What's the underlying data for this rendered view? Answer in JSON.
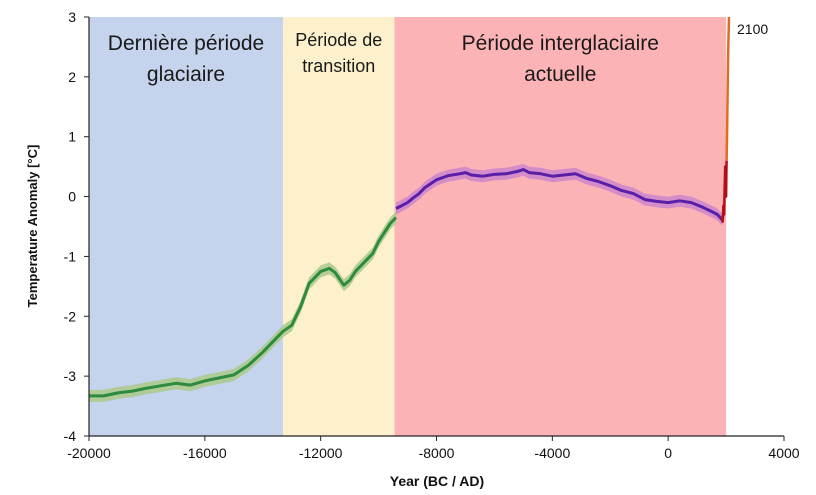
{
  "chart_data": {
    "type": "line",
    "title": "",
    "xlabel": "Year (BC / AD)",
    "ylabel": "Temperature Anomaly [°C]",
    "xlim": [
      -20000,
      4000
    ],
    "ylim": [
      -4,
      3
    ],
    "x_ticks": [
      -20000,
      -16000,
      -12000,
      -8000,
      -4000,
      0,
      4000
    ],
    "x_tick_labels": [
      "-20000",
      "-16000",
      "-12000",
      "-8000",
      "-4000",
      "0",
      "4000"
    ],
    "y_ticks": [
      3,
      2,
      1,
      0,
      -1,
      -2,
      -3,
      -4
    ],
    "y_tick_labels": [
      "3",
      "2",
      "1",
      "0",
      "-1",
      "-2",
      "-3",
      "-4"
    ],
    "grid": false,
    "periods": [
      {
        "label_lines": [
          "Dernière période",
          "glaciaire"
        ],
        "x_start": -20000,
        "x_end": -13300,
        "color": "#c5d3ec"
      },
      {
        "label_lines": [
          "Période de",
          "transition"
        ],
        "x_start": -13300,
        "x_end": -9450,
        "color": "#fdf0cc"
      },
      {
        "label_lines": [
          "Période interglaciaire",
          "actuelle"
        ],
        "x_start": -9450,
        "x_end": 2000,
        "color": "#fcb3b6"
      }
    ],
    "annotation": "2100",
    "uncertainty_halfwidth": 0.1,
    "series": [
      {
        "color": "#2d8a3e",
        "band_color": "#a9c98a",
        "x": [
          -20000,
          -19500,
          -19000,
          -18500,
          -18000,
          -17500,
          -17000,
          -16500,
          -16000,
          -15500,
          -15000,
          -14500,
          -14000,
          -13600,
          -13300,
          -13000,
          -12700,
          -12400,
          -12000,
          -11700,
          -11500,
          -11200,
          -11000,
          -10800,
          -10500,
          -10200,
          -10000,
          -9800,
          -9600,
          -9400
        ],
        "y": [
          -3.33,
          -3.33,
          -3.28,
          -3.25,
          -3.2,
          -3.16,
          -3.12,
          -3.15,
          -3.08,
          -3.03,
          -2.98,
          -2.82,
          -2.6,
          -2.4,
          -2.25,
          -2.15,
          -1.85,
          -1.45,
          -1.25,
          -1.2,
          -1.27,
          -1.48,
          -1.4,
          -1.25,
          -1.1,
          -0.95,
          -0.75,
          -0.6,
          -0.45,
          -0.35
        ]
      },
      {
        "color": "#5a1fa8",
        "band_color": "#cc86cc",
        "x": [
          -9400,
          -9200,
          -9000,
          -8800,
          -8600,
          -8400,
          -8000,
          -7600,
          -7200,
          -7000,
          -6800,
          -6400,
          -6000,
          -5600,
          -5200,
          -5000,
          -4800,
          -4400,
          -4000,
          -3600,
          -3200,
          -2800,
          -2400,
          -2000,
          -1600,
          -1200,
          -800,
          -400,
          0,
          400,
          800,
          1200,
          1500,
          1700,
          1850,
          1900
        ],
        "y": [
          -0.2,
          -0.15,
          -0.1,
          -0.02,
          0.05,
          0.15,
          0.28,
          0.35,
          0.38,
          0.4,
          0.36,
          0.34,
          0.37,
          0.38,
          0.42,
          0.45,
          0.4,
          0.38,
          0.34,
          0.36,
          0.38,
          0.3,
          0.25,
          0.18,
          0.1,
          0.05,
          -0.05,
          -0.08,
          -0.1,
          -0.07,
          -0.1,
          -0.18,
          -0.25,
          -0.3,
          -0.38,
          -0.33
        ]
      },
      {
        "color": "#b30d17",
        "x": [
          1850,
          1880,
          1910,
          1930,
          1950,
          1970,
          1990,
          2000,
          2010,
          2018
        ],
        "y": [
          -0.35,
          -0.42,
          -0.15,
          -0.3,
          0.1,
          0.5,
          0.3,
          0.0,
          0.4,
          0.6
        ]
      },
      {
        "color": "#e36b1f",
        "x": [
          2018,
          2040,
          2060,
          2080,
          2100
        ],
        "y": [
          0.6,
          1.2,
          2.0,
          2.6,
          3.0
        ]
      }
    ]
  }
}
